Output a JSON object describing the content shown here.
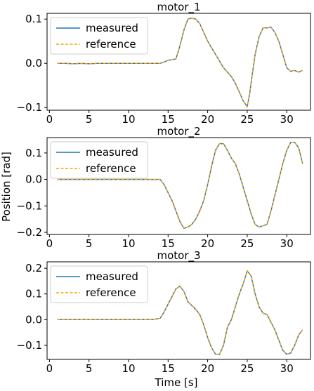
{
  "colors": {
    "measured": "#1f77b4",
    "reference": "#ff9f00",
    "axes": "#000000",
    "legend_border": "#cccccc"
  },
  "figure": {
    "ylabel": "Position [rad]",
    "xlabel": "Time [s]"
  },
  "chart_data": [
    {
      "type": "line",
      "title": "motor_1",
      "xlim": [
        -0.3,
        33.0
      ],
      "ylim": [
        -0.106,
        0.113
      ],
      "xticks": [
        0,
        5,
        10,
        15,
        20,
        25,
        30
      ],
      "xtick_labels": [
        "0",
        "5",
        "10",
        "15",
        "20",
        "25",
        "30"
      ],
      "yticks": [
        -0.1,
        0.0,
        0.1
      ],
      "ytick_labels": [
        "−0.1",
        "0.0",
        "0.1"
      ],
      "legend": {
        "position": "top-left",
        "entries": [
          "measured",
          "reference"
        ]
      },
      "series": [
        {
          "name": "measured",
          "style": "solid",
          "x": [
            1.0,
            2.0,
            3.0,
            4.0,
            5.0,
            6.0,
            7.0,
            8.0,
            9.0,
            10.0,
            11.0,
            12.0,
            13.0,
            14.0,
            14.5,
            15.0,
            15.5,
            16.0,
            16.5,
            17.0,
            17.5,
            18.0,
            18.5,
            19.0,
            19.5,
            20.0,
            20.5,
            21.0,
            21.5,
            22.0,
            22.5,
            23.0,
            23.5,
            24.0,
            24.5,
            25.0,
            25.3,
            25.6,
            26.0,
            26.5,
            27.0,
            27.5,
            28.0,
            28.5,
            29.0,
            29.5,
            30.0,
            30.5,
            31.0,
            31.5,
            32.0
          ],
          "y": [
            0.0,
            0.0,
            -0.001,
            0.0,
            -0.001,
            0.0,
            0.0,
            0.0,
            0.0,
            0.0,
            0.0,
            0.0,
            0.0,
            0.0,
            0.003,
            0.007,
            0.008,
            0.01,
            0.04,
            0.075,
            0.1,
            0.102,
            0.1,
            0.09,
            0.07,
            0.05,
            0.035,
            0.02,
            0.005,
            -0.01,
            -0.02,
            -0.03,
            -0.045,
            -0.065,
            -0.085,
            -0.098,
            -0.07,
            -0.03,
            0.02,
            0.06,
            0.08,
            0.08,
            0.082,
            0.07,
            0.05,
            0.02,
            -0.01,
            -0.018,
            -0.016,
            -0.02,
            -0.016
          ]
        },
        {
          "name": "reference",
          "style": "dashed",
          "x": [
            1.0,
            2.0,
            3.0,
            4.0,
            5.0,
            6.0,
            7.0,
            8.0,
            9.0,
            10.0,
            11.0,
            12.0,
            13.0,
            14.0,
            14.5,
            15.0,
            15.5,
            16.0,
            16.5,
            17.0,
            17.5,
            18.0,
            18.5,
            19.0,
            19.5,
            20.0,
            20.5,
            21.0,
            21.5,
            22.0,
            22.5,
            23.0,
            23.5,
            24.0,
            24.5,
            25.0,
            25.3,
            25.6,
            26.0,
            26.5,
            27.0,
            27.5,
            28.0,
            28.5,
            29.0,
            29.5,
            30.0,
            30.5,
            31.0,
            31.5,
            32.0
          ],
          "y": [
            0.0,
            0.0,
            -0.001,
            0.0,
            -0.001,
            0.0,
            0.0,
            0.0,
            0.0,
            0.0,
            0.0,
            0.0,
            0.0,
            0.0,
            0.003,
            0.007,
            0.008,
            0.01,
            0.04,
            0.075,
            0.1,
            0.102,
            0.1,
            0.09,
            0.07,
            0.05,
            0.035,
            0.02,
            0.005,
            -0.01,
            -0.02,
            -0.03,
            -0.045,
            -0.065,
            -0.085,
            -0.098,
            -0.07,
            -0.03,
            0.02,
            0.06,
            0.08,
            0.08,
            0.082,
            0.07,
            0.05,
            0.02,
            -0.01,
            -0.018,
            -0.016,
            -0.02,
            -0.016
          ]
        }
      ]
    },
    {
      "type": "line",
      "title": "motor_2",
      "xlim": [
        -0.3,
        33.0
      ],
      "ylim": [
        -0.208,
        0.158
      ],
      "xticks": [
        0,
        5,
        10,
        15,
        20,
        25,
        30
      ],
      "xtick_labels": [
        "0",
        "5",
        "10",
        "15",
        "20",
        "25",
        "30"
      ],
      "yticks": [
        -0.2,
        -0.1,
        0.0,
        0.1
      ],
      "ytick_labels": [
        "−0.2",
        "−0.1",
        "0.0",
        "0.1"
      ],
      "legend": {
        "position": "top-left",
        "entries": [
          "measured",
          "reference"
        ]
      },
      "series": [
        {
          "name": "measured",
          "style": "solid",
          "x": [
            1.0,
            2.0,
            3.0,
            4.0,
            5.0,
            6.0,
            7.0,
            8.0,
            9.0,
            10.0,
            11.0,
            12.0,
            13.0,
            14.0,
            14.5,
            15.0,
            15.5,
            16.0,
            16.5,
            17.0,
            17.5,
            18.0,
            18.5,
            19.0,
            19.5,
            20.0,
            20.5,
            21.0,
            21.5,
            22.0,
            22.5,
            23.0,
            23.5,
            24.0,
            24.5,
            25.0,
            25.5,
            26.0,
            26.5,
            27.0,
            27.5,
            28.0,
            28.5,
            29.0,
            29.5,
            30.0,
            30.5,
            31.0,
            31.5,
            32.0
          ],
          "y": [
            0.0,
            0.0,
            0.0,
            0.0,
            0.0,
            0.0,
            0.0,
            0.0,
            0.0,
            0.0,
            0.0,
            0.0,
            0.0,
            0.0,
            -0.02,
            -0.05,
            -0.08,
            -0.12,
            -0.16,
            -0.185,
            -0.18,
            -0.17,
            -0.15,
            -0.12,
            -0.08,
            -0.02,
            0.05,
            0.11,
            0.135,
            0.135,
            0.11,
            0.08,
            0.06,
            0.02,
            -0.03,
            -0.08,
            -0.13,
            -0.17,
            -0.18,
            -0.175,
            -0.17,
            -0.12,
            -0.06,
            0.0,
            0.06,
            0.11,
            0.14,
            0.14,
            0.12,
            0.06
          ]
        },
        {
          "name": "reference",
          "style": "dashed",
          "x": [
            1.0,
            2.0,
            3.0,
            4.0,
            5.0,
            6.0,
            7.0,
            8.0,
            9.0,
            10.0,
            11.0,
            12.0,
            13.0,
            14.0,
            14.5,
            15.0,
            15.5,
            16.0,
            16.5,
            17.0,
            17.5,
            18.0,
            18.5,
            19.0,
            19.5,
            20.0,
            20.5,
            21.0,
            21.5,
            22.0,
            22.5,
            23.0,
            23.5,
            24.0,
            24.5,
            25.0,
            25.5,
            26.0,
            26.5,
            27.0,
            27.5,
            28.0,
            28.5,
            29.0,
            29.5,
            30.0,
            30.5,
            31.0,
            31.5,
            32.0
          ],
          "y": [
            0.0,
            0.0,
            0.0,
            0.0,
            0.0,
            0.0,
            0.0,
            0.0,
            0.0,
            0.0,
            0.0,
            0.0,
            0.0,
            0.0,
            -0.02,
            -0.05,
            -0.08,
            -0.12,
            -0.16,
            -0.185,
            -0.18,
            -0.17,
            -0.15,
            -0.12,
            -0.08,
            -0.02,
            0.05,
            0.11,
            0.135,
            0.135,
            0.11,
            0.08,
            0.06,
            0.02,
            -0.03,
            -0.08,
            -0.13,
            -0.17,
            -0.18,
            -0.175,
            -0.17,
            -0.12,
            -0.06,
            0.0,
            0.06,
            0.11,
            0.14,
            0.14,
            0.12,
            0.06
          ]
        }
      ]
    },
    {
      "type": "line",
      "title": "motor_3",
      "xlim": [
        -0.3,
        33.0
      ],
      "ylim": [
        -0.155,
        0.225
      ],
      "xticks": [
        0,
        5,
        10,
        15,
        20,
        25,
        30
      ],
      "xtick_labels": [
        "0",
        "5",
        "10",
        "15",
        "20",
        "25",
        "30"
      ],
      "yticks": [
        -0.1,
        0.0,
        0.1,
        0.2
      ],
      "ytick_labels": [
        "−0.1",
        "0.0",
        "0.1",
        "0.2"
      ],
      "legend": {
        "position": "top-left",
        "entries": [
          "measured",
          "reference"
        ]
      },
      "series": [
        {
          "name": "measured",
          "style": "solid",
          "x": [
            1.0,
            2.0,
            3.0,
            4.0,
            5.0,
            6.0,
            7.0,
            8.0,
            9.0,
            10.0,
            11.0,
            12.0,
            13.0,
            14.0,
            14.5,
            15.0,
            15.5,
            16.0,
            16.5,
            17.0,
            17.5,
            18.0,
            18.5,
            19.0,
            19.5,
            20.0,
            20.5,
            21.0,
            21.5,
            22.0,
            22.5,
            23.0,
            23.5,
            24.0,
            24.5,
            25.0,
            25.5,
            26.0,
            26.5,
            27.0,
            27.5,
            28.0,
            28.5,
            29.0,
            29.5,
            30.0,
            30.5,
            31.0,
            31.5,
            32.0
          ],
          "y": [
            0.0,
            0.0,
            0.0,
            0.0,
            0.0,
            0.0,
            0.0,
            0.0,
            0.0,
            0.0,
            0.0,
            0.0,
            0.0,
            0.005,
            0.03,
            0.06,
            0.09,
            0.12,
            0.13,
            0.11,
            0.07,
            0.055,
            0.04,
            0.02,
            -0.02,
            -0.07,
            -0.11,
            -0.135,
            -0.135,
            -0.1,
            -0.03,
            0.0,
            0.05,
            0.1,
            0.14,
            0.19,
            0.17,
            0.1,
            0.05,
            0.025,
            0.02,
            -0.01,
            -0.04,
            -0.08,
            -0.12,
            -0.135,
            -0.13,
            -0.1,
            -0.06,
            -0.04
          ]
        },
        {
          "name": "reference",
          "style": "dashed",
          "x": [
            1.0,
            2.0,
            3.0,
            4.0,
            5.0,
            6.0,
            7.0,
            8.0,
            9.0,
            10.0,
            11.0,
            12.0,
            13.0,
            14.0,
            14.5,
            15.0,
            15.5,
            16.0,
            16.5,
            17.0,
            17.5,
            18.0,
            18.5,
            19.0,
            19.5,
            20.0,
            20.5,
            21.0,
            21.5,
            22.0,
            22.5,
            23.0,
            23.5,
            24.0,
            24.5,
            25.0,
            25.5,
            26.0,
            26.5,
            27.0,
            27.5,
            28.0,
            28.5,
            29.0,
            29.5,
            30.0,
            30.5,
            31.0,
            31.5,
            32.0
          ],
          "y": [
            0.0,
            0.0,
            0.0,
            0.0,
            0.0,
            0.0,
            0.0,
            0.0,
            0.0,
            0.0,
            0.0,
            0.0,
            0.0,
            0.005,
            0.03,
            0.06,
            0.09,
            0.12,
            0.13,
            0.11,
            0.07,
            0.055,
            0.04,
            0.02,
            -0.02,
            -0.07,
            -0.11,
            -0.135,
            -0.135,
            -0.1,
            -0.03,
            0.0,
            0.05,
            0.1,
            0.14,
            0.19,
            0.17,
            0.1,
            0.05,
            0.025,
            0.02,
            -0.01,
            -0.04,
            -0.08,
            -0.12,
            -0.135,
            -0.13,
            -0.1,
            -0.06,
            -0.04
          ]
        }
      ]
    }
  ]
}
